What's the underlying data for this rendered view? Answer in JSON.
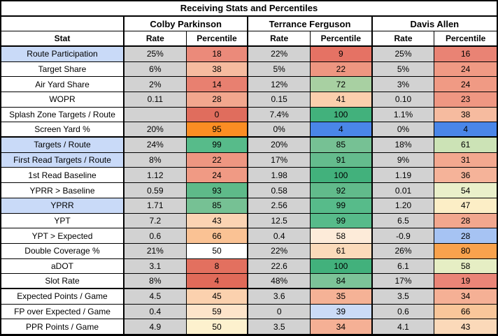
{
  "title": "Receiving Stats and Percentiles",
  "columns": {
    "stat_header": "Stat",
    "rate_header": "Rate",
    "percentile_header": "Percentile"
  },
  "players": [
    "Colby Parkinson",
    "Terrance Ferguson",
    "Davis Allen"
  ],
  "colors": {
    "rate_cell_bg": "#d2d2d2",
    "highlight_label_bg": "#c9daf8",
    "grid_line": "#000000",
    "percentile_low_red": "#e06d5d",
    "percentile_high_green": "#42b17c",
    "outlier_orange": "#fb8d23",
    "outlier_blue": "#4a86e8"
  },
  "rows": [
    {
      "stat": "Route Participation",
      "highlight": true,
      "section_end": false,
      "cells": [
        {
          "rate": "25%",
          "pct": "18",
          "color": "#eb8a7a"
        },
        {
          "rate": "22%",
          "pct": "9",
          "color": "#e57264"
        },
        {
          "rate": "25%",
          "pct": "16",
          "color": "#e98374"
        }
      ]
    },
    {
      "stat": "Target Share",
      "highlight": false,
      "section_end": false,
      "cells": [
        {
          "rate": "6%",
          "pct": "38",
          "color": "#f6bb9f"
        },
        {
          "rate": "5%",
          "pct": "22",
          "color": "#ee9681"
        },
        {
          "rate": "5%",
          "pct": "24",
          "color": "#f09a84"
        }
      ]
    },
    {
      "stat": "Air Yard Share",
      "highlight": false,
      "section_end": false,
      "cells": [
        {
          "rate": "2%",
          "pct": "14",
          "color": "#e88070"
        },
        {
          "rate": "12%",
          "pct": "72",
          "color": "#a8d0a2"
        },
        {
          "rate": "3%",
          "pct": "24",
          "color": "#f09a84"
        }
      ]
    },
    {
      "stat": "WOPR",
      "highlight": false,
      "section_end": false,
      "cells": [
        {
          "rate": "0.11",
          "pct": "28",
          "color": "#f2a78e"
        },
        {
          "rate": "0.15",
          "pct": "41",
          "color": "#fbcfad"
        },
        {
          "rate": "0.10",
          "pct": "23",
          "color": "#ef9782"
        }
      ]
    },
    {
      "stat": "Splash Zone Targets / Route",
      "highlight": false,
      "section_end": false,
      "cells": [
        {
          "rate": "",
          "pct": "0",
          "color": "#e06d5d"
        },
        {
          "rate": "7.4%",
          "pct": "100",
          "color": "#42b17c"
        },
        {
          "rate": "1.1%",
          "pct": "38",
          "color": "#f6bb9f"
        }
      ]
    },
    {
      "stat": "Screen Yard %",
      "highlight": false,
      "section_end": true,
      "cells": [
        {
          "rate": "20%",
          "pct": "95",
          "color": "#fb8d23"
        },
        {
          "rate": "0%",
          "pct": "4",
          "color": "#4a86e8"
        },
        {
          "rate": "0%",
          "pct": "4",
          "color": "#4a86e8"
        }
      ]
    },
    {
      "stat": "Targets / Route",
      "highlight": true,
      "section_end": false,
      "cells": [
        {
          "rate": "24%",
          "pct": "99",
          "color": "#57bb8a"
        },
        {
          "rate": "20%",
          "pct": "85",
          "color": "#76c194"
        },
        {
          "rate": "18%",
          "pct": "61",
          "color": "#cce3b6"
        }
      ]
    },
    {
      "stat": "First Read Targets / Route",
      "highlight": true,
      "section_end": false,
      "cells": [
        {
          "rate": "8%",
          "pct": "22",
          "color": "#ee9681"
        },
        {
          "rate": "17%",
          "pct": "91",
          "color": "#64bc8d"
        },
        {
          "rate": "9%",
          "pct": "31",
          "color": "#f3a88f"
        }
      ]
    },
    {
      "stat": "1st Read Baseline",
      "highlight": false,
      "section_end": false,
      "cells": [
        {
          "rate": "1.12",
          "pct": "24",
          "color": "#f09a84"
        },
        {
          "rate": "1.98",
          "pct": "100",
          "color": "#42b17c"
        },
        {
          "rate": "1.19",
          "pct": "36",
          "color": "#f5b399"
        }
      ]
    },
    {
      "stat": "YPRR > Baseline",
      "highlight": false,
      "section_end": false,
      "cells": [
        {
          "rate": "0.59",
          "pct": "93",
          "color": "#5eba89"
        },
        {
          "rate": "0.58",
          "pct": "92",
          "color": "#61bb8b"
        },
        {
          "rate": "0.01",
          "pct": "54",
          "color": "#eaf0ca"
        }
      ]
    },
    {
      "stat": "YPRR",
      "highlight": true,
      "section_end": false,
      "cells": [
        {
          "rate": "1.71",
          "pct": "85",
          "color": "#76c194"
        },
        {
          "rate": "2.56",
          "pct": "99",
          "color": "#57bb8a"
        },
        {
          "rate": "1.20",
          "pct": "47",
          "color": "#fceec6"
        }
      ]
    },
    {
      "stat": "YPT",
      "highlight": false,
      "section_end": false,
      "cells": [
        {
          "rate": "7.2",
          "pct": "43",
          "color": "#fbd4b3"
        },
        {
          "rate": "12.5",
          "pct": "99",
          "color": "#57bb8a"
        },
        {
          "rate": "6.5",
          "pct": "28",
          "color": "#f2a78e"
        }
      ]
    },
    {
      "stat": "YPT > Expected",
      "highlight": false,
      "section_end": false,
      "cells": [
        {
          "rate": "0.6",
          "pct": "66",
          "color": "#fac294"
        },
        {
          "rate": "0.4",
          "pct": "58",
          "color": "#fdebd9"
        },
        {
          "rate": "-0.9",
          "pct": "28",
          "color": "#a6c3f3"
        }
      ]
    },
    {
      "stat": "Double Coverage %",
      "highlight": false,
      "section_end": false,
      "cells": [
        {
          "rate": "21%",
          "pct": "50",
          "color": "#ffffff"
        },
        {
          "rate": "22%",
          "pct": "61",
          "color": "#fbdaba"
        },
        {
          "rate": "26%",
          "pct": "80",
          "color": "#f9a24d"
        }
      ]
    },
    {
      "stat": "aDOT",
      "highlight": false,
      "section_end": false,
      "cells": [
        {
          "rate": "3.1",
          "pct": "8",
          "color": "#e3705f"
        },
        {
          "rate": "22.6",
          "pct": "100",
          "color": "#42b17c"
        },
        {
          "rate": "6.1",
          "pct": "58",
          "color": "#e6eec4"
        }
      ]
    },
    {
      "stat": "Slot Rate",
      "highlight": false,
      "section_end": true,
      "cells": [
        {
          "rate": "8%",
          "pct": "4",
          "color": "#e06a59"
        },
        {
          "rate": "48%",
          "pct": "84",
          "color": "#7cc398"
        },
        {
          "rate": "17%",
          "pct": "19",
          "color": "#ea8577"
        }
      ]
    },
    {
      "stat": "Expected Points / Game",
      "highlight": false,
      "section_end": false,
      "cells": [
        {
          "rate": "4.5",
          "pct": "45",
          "color": "#fbd1ae"
        },
        {
          "rate": "3.6",
          "pct": "35",
          "color": "#f5b296"
        },
        {
          "rate": "3.5",
          "pct": "34",
          "color": "#f5b095"
        }
      ]
    },
    {
      "stat": "FP over Expected / Game",
      "highlight": false,
      "section_end": false,
      "cells": [
        {
          "rate": "0.4",
          "pct": "59",
          "color": "#fde4ca"
        },
        {
          "rate": "0",
          "pct": "39",
          "color": "#cbdbf7"
        },
        {
          "rate": "0.6",
          "pct": "66",
          "color": "#f9c69a"
        }
      ]
    },
    {
      "stat": "PPR Points / Game",
      "highlight": false,
      "section_end": false,
      "cells": [
        {
          "rate": "4.9",
          "pct": "50",
          "color": "#fdf1ce"
        },
        {
          "rate": "3.5",
          "pct": "34",
          "color": "#f5b095"
        },
        {
          "rate": "4.1",
          "pct": "43",
          "color": "#fbd9b9"
        }
      ]
    }
  ]
}
